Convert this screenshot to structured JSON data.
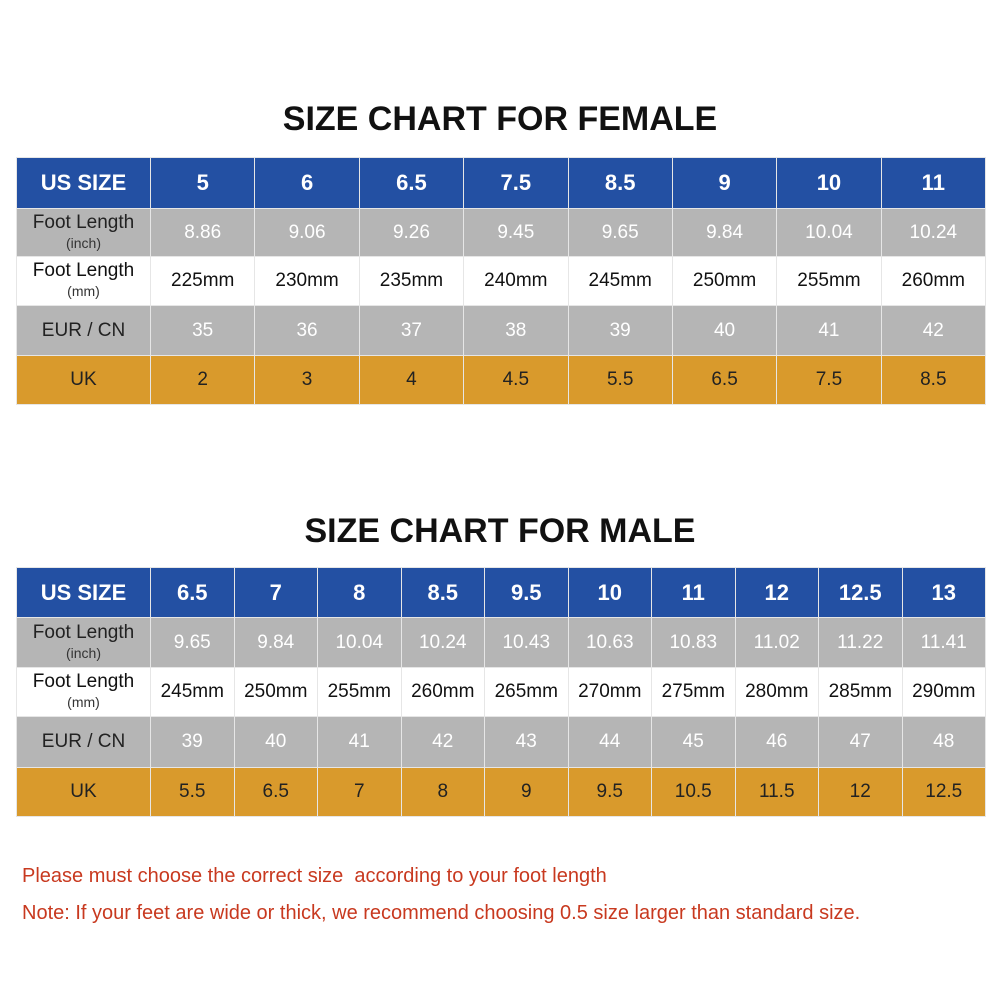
{
  "charts": [
    {
      "title": "SIZE CHART FOR FEMALE",
      "header": {
        "label": "US SIZE",
        "sizes": [
          "5",
          "6",
          "6.5",
          "7.5",
          "8.5",
          "9",
          "10",
          "11"
        ]
      },
      "rows": [
        {
          "label": "Foot Length",
          "sublabel": "(inch)",
          "cells": [
            "8.86",
            "9.06",
            "9.26",
            "9.45",
            "9.65",
            "9.84",
            "10.04",
            "10.24"
          ]
        },
        {
          "label": "Foot Length",
          "sublabel": "(mm)",
          "cells": [
            "225mm",
            "230mm",
            "235mm",
            "240mm",
            "245mm",
            "250mm",
            "255mm",
            "260mm"
          ]
        },
        {
          "label": "EUR / CN",
          "cells": [
            "35",
            "36",
            "37",
            "38",
            "39",
            "40",
            "41",
            "42"
          ]
        },
        {
          "label": "UK",
          "cells": [
            "2",
            "3",
            "4",
            "4.5",
            "5.5",
            "6.5",
            "7.5",
            "8.5"
          ]
        }
      ]
    },
    {
      "title": "SIZE CHART FOR MALE",
      "header": {
        "label": "US SIZE",
        "sizes": [
          "6.5",
          "7",
          "8",
          "8.5",
          "9.5",
          "10",
          "11",
          "12",
          "12.5",
          "13"
        ]
      },
      "rows": [
        {
          "label": "Foot Length",
          "sublabel": "(inch)",
          "cells": [
            "9.65",
            "9.84",
            "10.04",
            "10.24",
            "10.43",
            "10.63",
            "10.83",
            "11.02",
            "11.22",
            "11.41"
          ]
        },
        {
          "label": "Foot Length",
          "sublabel": "(mm)",
          "cells": [
            "245mm",
            "250mm",
            "255mm",
            "260mm",
            "265mm",
            "270mm",
            "275mm",
            "280mm",
            "285mm",
            "290mm"
          ]
        },
        {
          "label": "EUR / CN",
          "cells": [
            "39",
            "40",
            "41",
            "42",
            "43",
            "44",
            "45",
            "46",
            "47",
            "48"
          ]
        },
        {
          "label": "UK",
          "cells": [
            "5.5",
            "6.5",
            "7",
            "8",
            "9",
            "9.5",
            "10.5",
            "11.5",
            "12",
            "12.5"
          ]
        }
      ]
    }
  ],
  "notes": [
    "Please must choose the correct size  according to your foot length",
    "Note: If your feet are wide or thick, we recommend choosing 0.5 size larger than standard size."
  ]
}
